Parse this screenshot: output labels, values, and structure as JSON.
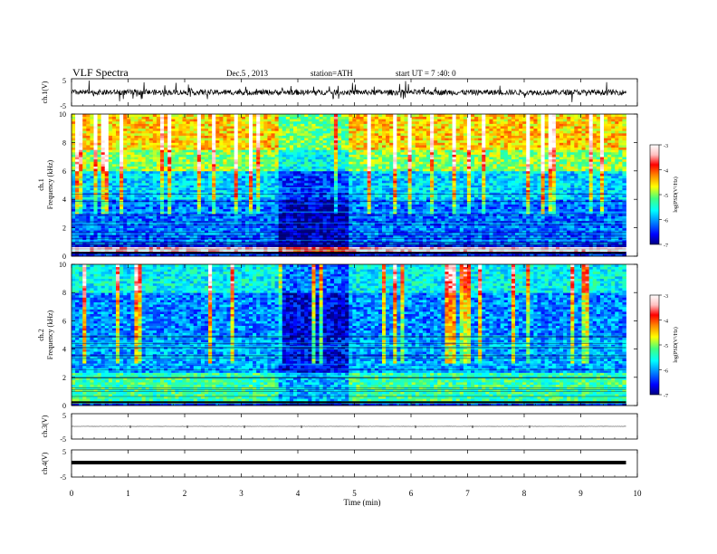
{
  "header": {
    "title": "VLF Spectra",
    "date": "Dec.5 , 2013",
    "station": "station=ATH",
    "start_time": "start UT = 7 :40: 0"
  },
  "colorbar": {
    "label": "log(PSD(V²/Hz)",
    "ticks": [
      "-3",
      "-4",
      "-5",
      "-6",
      "-7"
    ],
    "colors": [
      "#000080",
      "#0000ff",
      "#0080ff",
      "#00ffff",
      "#40ff80",
      "#ffff00",
      "#ff8000",
      "#ff0000",
      "#ffc0c0",
      "#ffffff"
    ]
  },
  "chart_data": [
    {
      "type": "line",
      "name": "ch1-waveform",
      "ylabel": "ch.1(V)",
      "ylim": [
        -5,
        5
      ],
      "y_ticks": [
        "5",
        "-5"
      ],
      "description_values": {
        "baseline": 0,
        "typical_amplitude": 1.0,
        "max_spike": 3.5
      }
    },
    {
      "type": "heatmap",
      "name": "ch1-spectrogram",
      "ylabel": [
        "ch.1",
        "Frequency (kHz)"
      ],
      "ylim": [
        0,
        10
      ],
      "y_ticks": [
        "0",
        "2",
        "4",
        "6",
        "8",
        "10"
      ],
      "clim": [
        -7,
        -3
      ],
      "bands_khz": [
        {
          "range": [
            0.3,
            0.7
          ],
          "log_psd": -3.2
        },
        {
          "range": [
            0.8,
            4.0
          ],
          "log_psd": -6.2
        },
        {
          "range": [
            4.0,
            6.0
          ],
          "log_psd": -5.8
        },
        {
          "range": [
            6.0,
            7.5
          ],
          "log_psd": -5.0
        },
        {
          "range": [
            7.5,
            10.0
          ],
          "log_psd": -4.5
        }
      ]
    },
    {
      "type": "heatmap",
      "name": "ch2-spectrogram",
      "ylabel": [
        "ch.2",
        "Frequency (kHz)"
      ],
      "ylim": [
        0,
        10
      ],
      "y_ticks": [
        "0",
        "2",
        "4",
        "6",
        "8",
        "10"
      ],
      "clim": [
        -7,
        -3
      ],
      "bands_khz": [
        {
          "range": [
            0.2,
            2.4
          ],
          "log_psd": -5.3
        },
        {
          "range": [
            2.4,
            5.0
          ],
          "log_psd": -6.0
        },
        {
          "range": [
            5.0,
            8.0
          ],
          "log_psd": -6.1
        },
        {
          "range": [
            8.0,
            10.0
          ],
          "log_psd": -5.6
        }
      ]
    },
    {
      "type": "line",
      "name": "ch3-waveform",
      "ylabel": "ch.3(V)",
      "ylim": [
        -5,
        5
      ],
      "y_ticks": [
        "5",
        "-5"
      ],
      "description_values": {
        "baseline": 0,
        "typical_amplitude": 0.05
      }
    },
    {
      "type": "line",
      "name": "ch4-waveform",
      "ylabel": "ch.4(V)",
      "ylim": [
        -5,
        5
      ],
      "y_ticks": [
        "5",
        "-5"
      ],
      "description_values": {
        "baseline": 0,
        "typical_amplitude": 0.2
      }
    }
  ],
  "x_axis": {
    "label": "Time (min)",
    "xlim": [
      0,
      10
    ],
    "data_end": 9.8,
    "ticks": [
      "0",
      "1",
      "2",
      "3",
      "4",
      "5",
      "6",
      "7",
      "8",
      "9",
      "10"
    ]
  }
}
